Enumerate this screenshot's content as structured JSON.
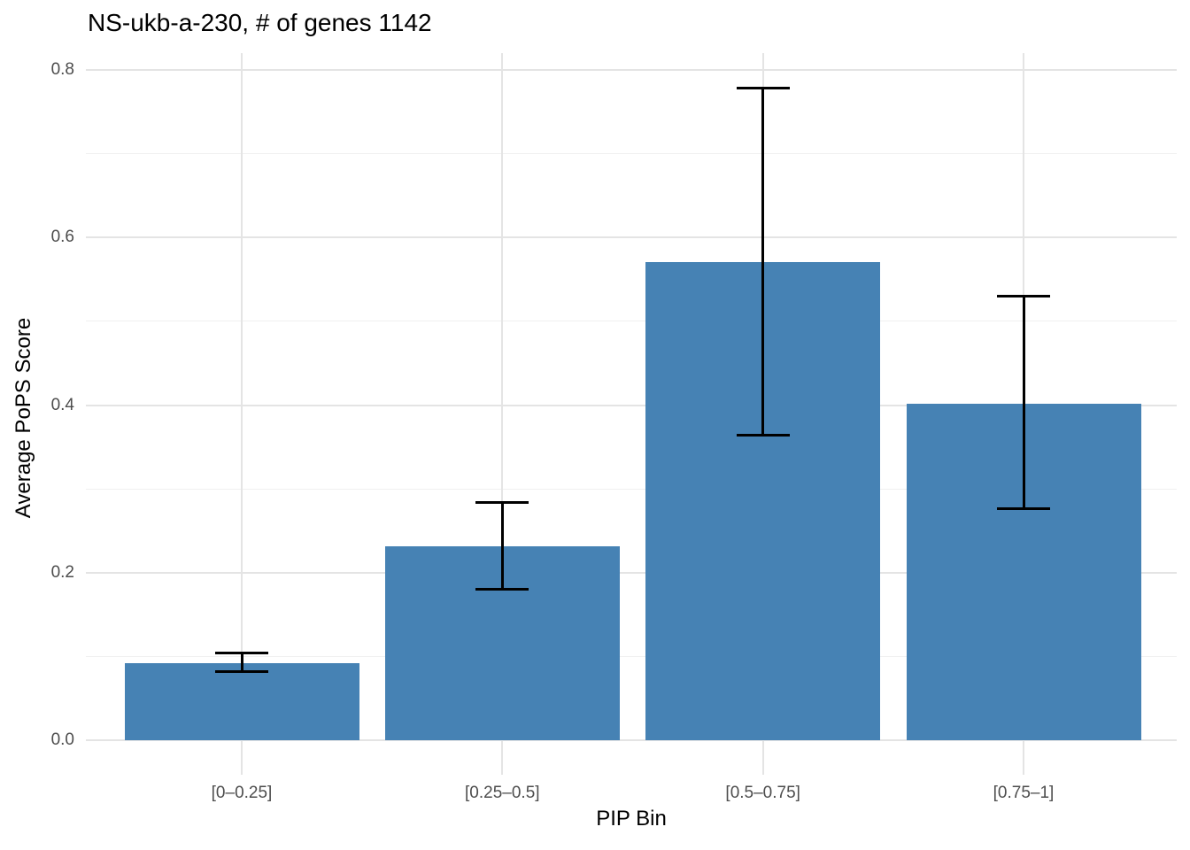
{
  "chart_data": {
    "type": "bar",
    "title": "NS-ukb-a-230, # of genes 1142",
    "xlabel": "PIP Bin",
    "ylabel": "Average PoPS Score",
    "categories": [
      "[0–0.25]",
      "[0.25–0.5]",
      "[0.5–0.75]",
      "[0.75–1]"
    ],
    "values": [
      0.092,
      0.231,
      0.571,
      0.402
    ],
    "error_low": [
      0.082,
      0.18,
      0.364,
      0.276
    ],
    "error_high": [
      0.104,
      0.284,
      0.778,
      0.53
    ],
    "ylim": [
      0,
      0.8
    ],
    "yticks": [
      0,
      0.2,
      0.4,
      0.6,
      0.8
    ],
    "ytick_labels": [
      "0.0",
      "0.2",
      "0.4",
      "0.6",
      "0.8"
    ],
    "minor_gridlines": [
      0.1,
      0.3,
      0.5,
      0.7
    ],
    "grid": true,
    "legend": "none",
    "colors": {
      "bar": "#4682B4",
      "errorbar": "#000000",
      "grid_major": "#E4E4E4",
      "grid_minor": "#F0F0F0",
      "axis_text": "#4D4D4D",
      "title_text": "#000000"
    }
  }
}
